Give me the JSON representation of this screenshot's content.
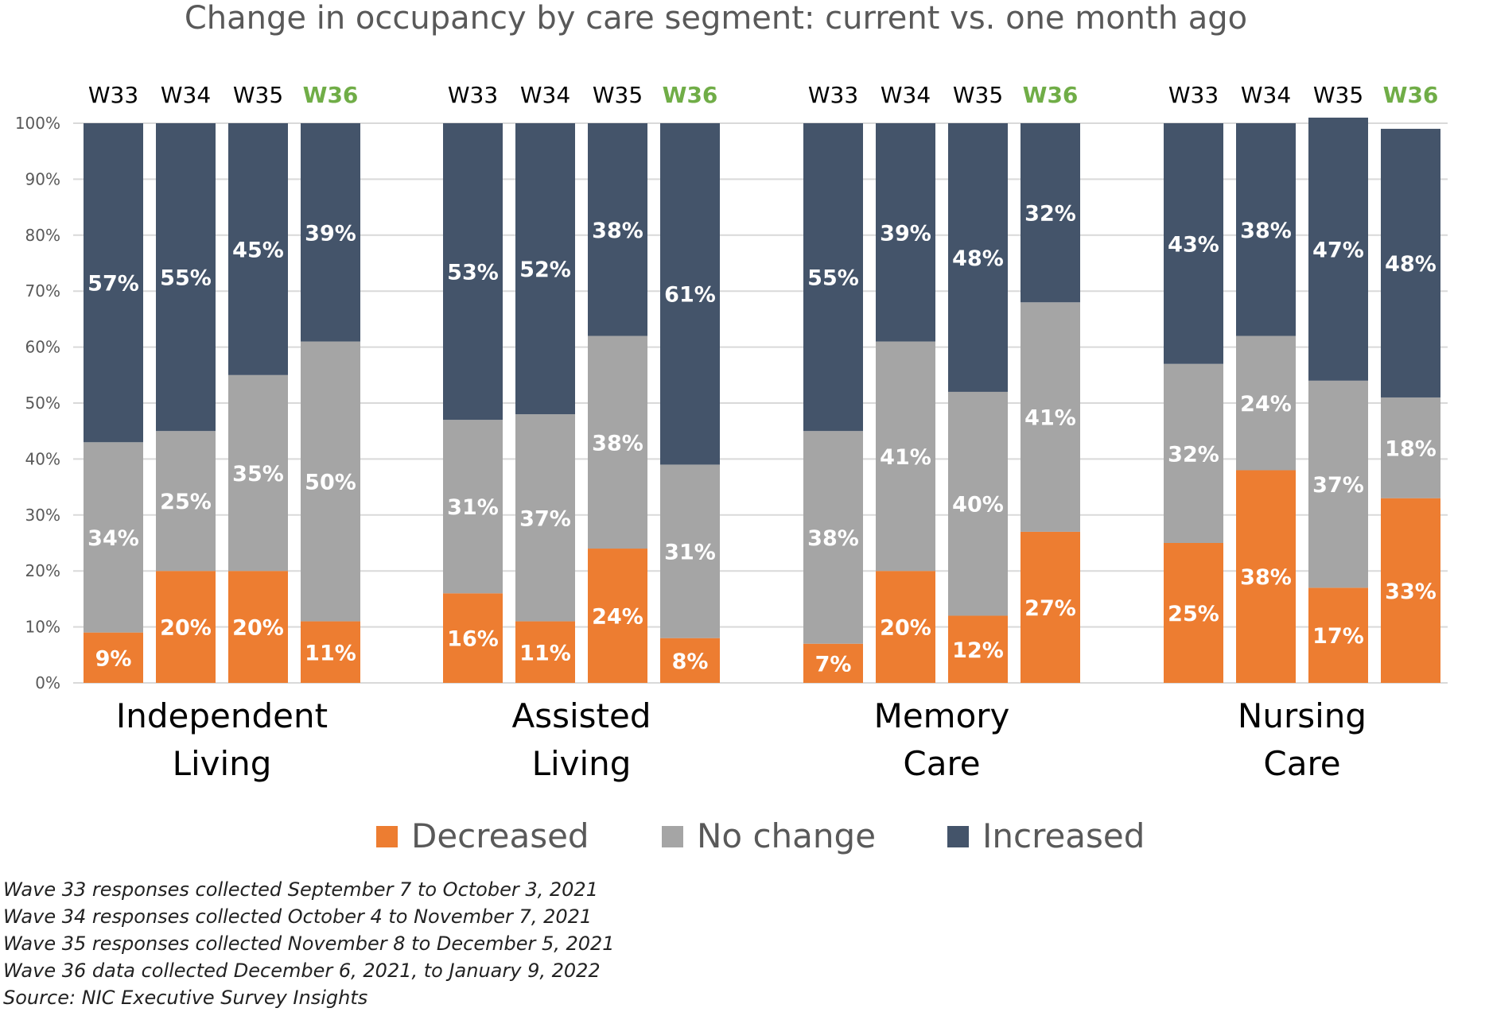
{
  "chart_data": {
    "type": "bar",
    "stacked": true,
    "percent_stacked": true,
    "title": "Change in occupancy by care segment: current vs. one month ago",
    "ylim": [
      0,
      100
    ],
    "yticks": [
      "0%",
      "10%",
      "20%",
      "30%",
      "40%",
      "50%",
      "60%",
      "70%",
      "80%",
      "90%",
      "100%"
    ],
    "grid": true,
    "legend_position": "bottom",
    "highlight_wave": "W36",
    "groups": [
      {
        "label_lines": [
          "Independent",
          "Living"
        ],
        "waves": [
          "W33",
          "W34",
          "W35",
          "W36"
        ],
        "series": [
          {
            "name": "Decreased",
            "values": [
              9,
              20,
              20,
              11
            ]
          },
          {
            "name": "No change",
            "values": [
              34,
              25,
              35,
              50
            ]
          },
          {
            "name": "Increased",
            "values": [
              57,
              55,
              45,
              39
            ]
          }
        ]
      },
      {
        "label_lines": [
          "Assisted",
          "Living"
        ],
        "waves": [
          "W33",
          "W34",
          "W35",
          "W36"
        ],
        "series": [
          {
            "name": "Decreased",
            "values": [
              16,
              11,
              24,
              8
            ]
          },
          {
            "name": "No change",
            "values": [
              31,
              37,
              38,
              31
            ]
          },
          {
            "name": "Increased",
            "values": [
              53,
              52,
              38,
              61
            ]
          }
        ]
      },
      {
        "label_lines": [
          "Memory",
          "Care"
        ],
        "waves": [
          "W33",
          "W34",
          "W35",
          "W36"
        ],
        "series": [
          {
            "name": "Decreased",
            "values": [
              7,
              20,
              12,
              27
            ]
          },
          {
            "name": "No change",
            "values": [
              38,
              41,
              40,
              41
            ]
          },
          {
            "name": "Increased",
            "values": [
              55,
              39,
              48,
              32
            ]
          }
        ]
      },
      {
        "label_lines": [
          "Nursing",
          "Care"
        ],
        "waves": [
          "W33",
          "W34",
          "W35",
          "W36"
        ],
        "series": [
          {
            "name": "Decreased",
            "values": [
              25,
              38,
              17,
              33
            ]
          },
          {
            "name": "No change",
            "values": [
              32,
              24,
              37,
              18
            ]
          },
          {
            "name": "Increased",
            "values": [
              43,
              38,
              47,
              48
            ]
          }
        ]
      }
    ],
    "legend": [
      {
        "name": "Decreased",
        "color": "#ED7D31"
      },
      {
        "name": "No change",
        "color": "#A5A5A5"
      },
      {
        "name": "Increased",
        "color": "#44546A"
      }
    ],
    "colors": {
      "Decreased": "#ED7D31",
      "No change": "#A5A5A5",
      "Increased": "#44546A",
      "highlight_label": "#70AD47"
    }
  },
  "notes": [
    "Wave 33 responses collected September 7 to October 3, 2021",
    "Wave 34 responses collected October 4 to November 7, 2021",
    "Wave 35 responses collected November 8 to December 5, 2021",
    "Wave 36 data collected December 6, 2021, to January 9, 2022",
    "Source: NIC Executive Survey Insights"
  ]
}
